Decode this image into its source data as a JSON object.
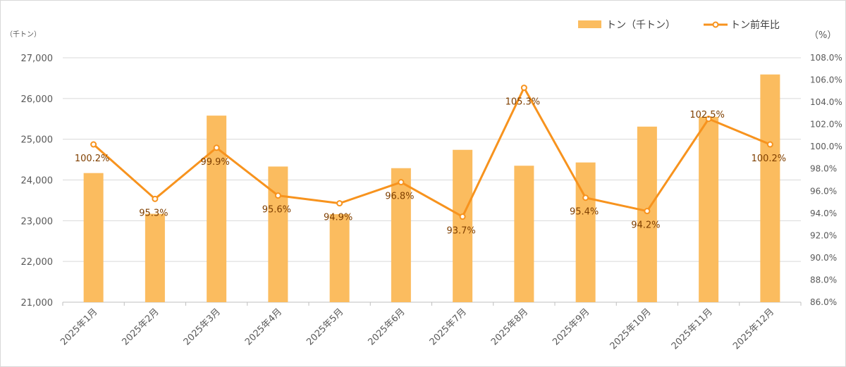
{
  "chart_data": {
    "type": "bar+line",
    "categories": [
      "2025年1月",
      "2025年2月",
      "2025年3月",
      "2025年4月",
      "2025年5月",
      "2025年6月",
      "2025年7月",
      "2025年8月",
      "2025年9月",
      "2025年10月",
      "2025年11月",
      "2025年12月"
    ],
    "series": [
      {
        "name": "トン（千トン）",
        "type": "bar",
        "axis": "left",
        "values": [
          24170,
          23170,
          25580,
          24330,
          23160,
          24290,
          24740,
          24350,
          24430,
          25310,
          25550,
          26590
        ],
        "color": "#fbbc5f"
      },
      {
        "name": "トン前年比",
        "type": "line",
        "axis": "right",
        "values": [
          100.2,
          95.3,
          99.9,
          95.6,
          94.9,
          96.8,
          93.7,
          105.3,
          95.4,
          94.2,
          102.5,
          100.2
        ],
        "labels": [
          "100.2%",
          "95.3%",
          "99.9%",
          "95.6%",
          "94.9%",
          "96.8%",
          "93.7%",
          "105.3%",
          "95.4%",
          "94.2%",
          "102.5%",
          "100.2%"
        ],
        "color": "#f7931e"
      }
    ],
    "left_axis": {
      "unit": "（千トン）",
      "ylim": [
        21000,
        27000
      ],
      "ticks": [
        "21,000",
        "22,000",
        "23,000",
        "24,000",
        "25,000",
        "26,000",
        "27,000"
      ]
    },
    "right_axis": {
      "unit": "（%）",
      "ylim": [
        86,
        108
      ],
      "ticks": [
        "86.0%",
        "88.0%",
        "90.0%",
        "92.0%",
        "94.0%",
        "96.0%",
        "98.0%",
        "100.0%",
        "102.0%",
        "104.0%",
        "106.0%",
        "108.0%"
      ]
    },
    "grid": true,
    "legend": "top-right"
  }
}
